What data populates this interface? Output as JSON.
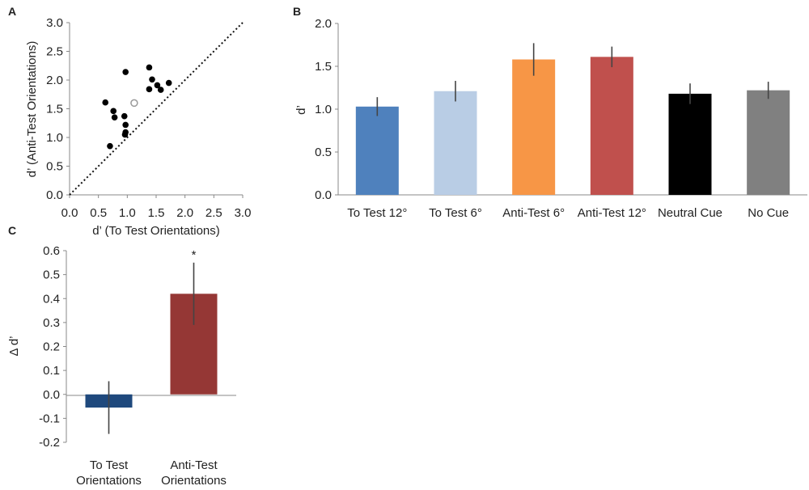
{
  "chart_data": [
    {
      "panel": "A",
      "type": "scatter",
      "xlabel": "d’ (To Test Orientations)",
      "ylabel": "d’ (Anti-Test Orientations)",
      "xlim": [
        0,
        3
      ],
      "ylim": [
        0,
        3
      ],
      "xticks": [
        "0.0",
        "0.5",
        "1.0",
        "1.5",
        "2.0",
        "2.5",
        "3.0"
      ],
      "yticks": [
        "0.0",
        "0.5",
        "1.0",
        "1.5",
        "2.0",
        "2.5",
        "3.0"
      ],
      "reference_line": "identity",
      "points": [
        {
          "x": 0.97,
          "y": 2.14
        },
        {
          "x": 1.38,
          "y": 2.22
        },
        {
          "x": 1.43,
          "y": 2.01
        },
        {
          "x": 1.52,
          "y": 1.91
        },
        {
          "x": 1.38,
          "y": 1.84
        },
        {
          "x": 1.58,
          "y": 1.83
        },
        {
          "x": 1.72,
          "y": 1.95
        },
        {
          "x": 0.62,
          "y": 1.61
        },
        {
          "x": 0.76,
          "y": 1.46
        },
        {
          "x": 0.78,
          "y": 1.35
        },
        {
          "x": 0.95,
          "y": 1.37
        },
        {
          "x": 0.97,
          "y": 1.22
        },
        {
          "x": 0.97,
          "y": 1.09
        },
        {
          "x": 0.96,
          "y": 1.05
        },
        {
          "x": 0.7,
          "y": 0.85
        }
      ],
      "mean_point": {
        "x": 1.12,
        "y": 1.6
      }
    },
    {
      "panel": "B",
      "type": "bar",
      "ylabel": "d’",
      "ylim": [
        0,
        2
      ],
      "yticks": [
        "0.0",
        "0.5",
        "1.0",
        "1.5",
        "2.0"
      ],
      "categories": [
        "To Test 12°",
        "To Test 6°",
        "Anti-Test 6°",
        "Anti-Test 12°",
        "Neutral Cue",
        "No Cue"
      ],
      "values": [
        1.03,
        1.21,
        1.58,
        1.61,
        1.18,
        1.22
      ],
      "errors": [
        0.11,
        0.12,
        0.19,
        0.12,
        0.12,
        0.1
      ],
      "colors": [
        "#4f81bd",
        "#b9cde5",
        "#f79646",
        "#c0504d",
        "#000000",
        "#808080"
      ]
    },
    {
      "panel": "C",
      "type": "bar",
      "ylabel": "Δ d’",
      "ylim": [
        -0.2,
        0.6
      ],
      "yticks": [
        "0.6",
        "0.5",
        "0.4",
        "0.3",
        "0.2",
        "0.1",
        "0.0",
        "-0.1",
        "-0.2"
      ],
      "categories": [
        [
          "To Test",
          "Orientations"
        ],
        [
          "Anti-Test",
          "Orientations"
        ]
      ],
      "values": [
        -0.055,
        0.42
      ],
      "errors": [
        0.11,
        0.13
      ],
      "colors": [
        "#1f497d",
        "#953735"
      ],
      "significance": [
        null,
        "*"
      ]
    }
  ]
}
